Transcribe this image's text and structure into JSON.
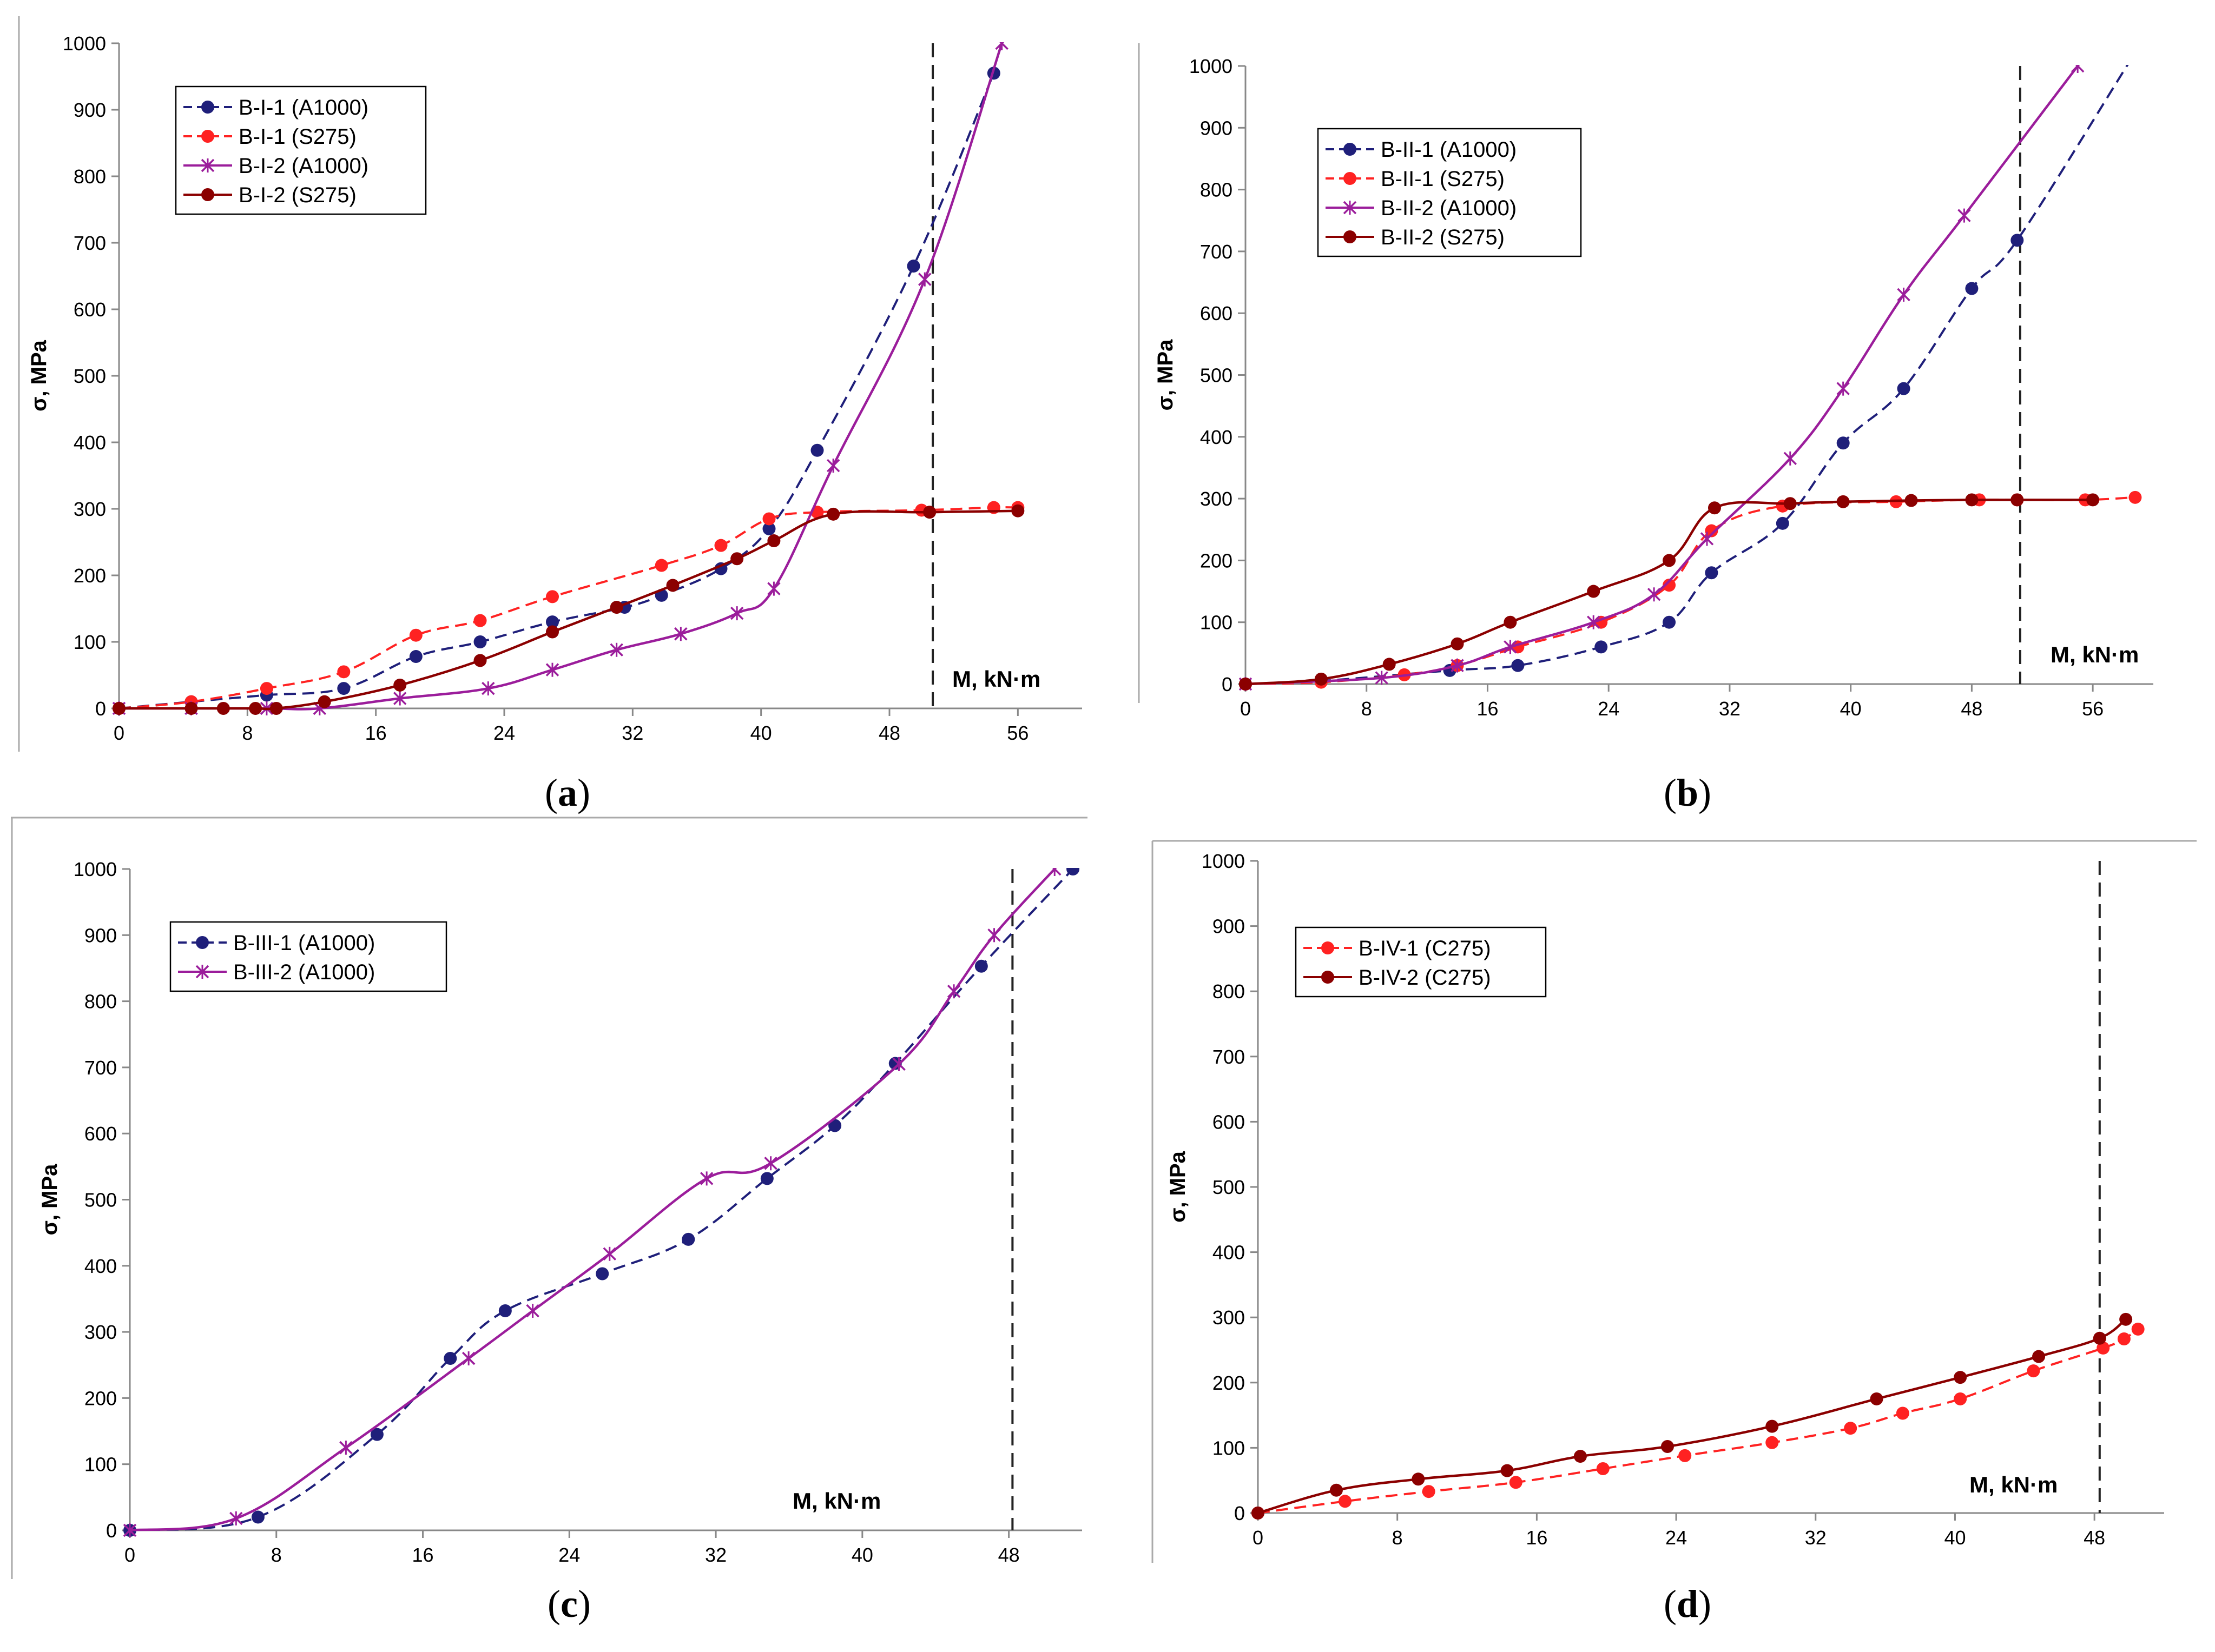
{
  "chart_data": [
    {
      "type": "line",
      "panel": "a",
      "caption": "(a)",
      "ylabel": "σ, MPa",
      "xlabel": "M,  kN·m",
      "xlim": [
        0,
        60
      ],
      "ylim": [
        0,
        1000
      ],
      "xticks": [
        0,
        8,
        16,
        24,
        32,
        40,
        48,
        56
      ],
      "yticks": [
        0,
        100,
        200,
        300,
        400,
        500,
        600,
        700,
        800,
        900,
        1000
      ],
      "vline_x": 50.7,
      "legend_position": "top-left",
      "series": [
        {
          "name": "B-I-1 (A1000)",
          "color": "#1f1f7a",
          "dashed": true,
          "marker": "dot",
          "x": [
            0,
            4.5,
            9.2,
            14,
            18.5,
            22.5,
            27,
            31.5,
            33.8,
            37.5,
            40.5,
            43.5,
            49.5,
            54.5
          ],
          "y": [
            0,
            10,
            20,
            30,
            78,
            100,
            130,
            152,
            170,
            210,
            270,
            388,
            665,
            955
          ]
        },
        {
          "name": "B-I-1 (S275)",
          "color": "#ff2222",
          "dashed": true,
          "marker": "dot",
          "x": [
            0,
            4.5,
            9.2,
            14,
            18.5,
            22.5,
            27,
            33.8,
            37.5,
            40.5,
            43.5,
            50,
            54.5,
            56
          ],
          "y": [
            0,
            10,
            30,
            55,
            110,
            132,
            168,
            215,
            245,
            285,
            295,
            298,
            302,
            302
          ]
        },
        {
          "name": "B-I-2 (A1000)",
          "color": "#9b1d9b",
          "dashed": false,
          "marker": "x",
          "x": [
            0,
            4.5,
            9.2,
            12.5,
            17.5,
            23,
            27,
            31,
            35,
            38.5,
            40.8,
            44.5,
            50.2,
            55
          ],
          "y": [
            0,
            0,
            0,
            0,
            15,
            30,
            58,
            88,
            112,
            143,
            180,
            365,
            645,
            1000
          ]
        },
        {
          "name": "B-I-2 (S275)",
          "color": "#8b0000",
          "dashed": false,
          "marker": "dot",
          "x": [
            0,
            4.5,
            6.5,
            8.5,
            9.8,
            12.8,
            17.5,
            22.5,
            27,
            31,
            34.5,
            38.5,
            40.8,
            44.5,
            50.5,
            56
          ],
          "y": [
            0,
            0,
            0,
            0,
            0,
            10,
            35,
            72,
            115,
            152,
            185,
            225,
            252,
            292,
            295,
            297
          ]
        }
      ]
    },
    {
      "type": "line",
      "panel": "b",
      "caption": "(b)",
      "ylabel": "σ, MPa",
      "xlabel": "M,  kN·m",
      "xlim": [
        0,
        60
      ],
      "ylim": [
        0,
        1000
      ],
      "xticks": [
        0,
        8,
        16,
        24,
        32,
        40,
        48,
        56
      ],
      "yticks": [
        0,
        100,
        200,
        300,
        400,
        500,
        600,
        700,
        800,
        900,
        1000
      ],
      "vline_x": 51.2,
      "legend_position": "top-left",
      "series": [
        {
          "name": "B-II-1 (A1000)",
          "color": "#1f1f7a",
          "dashed": true,
          "marker": "dot",
          "x": [
            0,
            5,
            13.5,
            18,
            23.5,
            28,
            30.8,
            35.5,
            39.5,
            43.5,
            48,
            51,
            58.5
          ],
          "y": [
            0,
            5,
            22,
            30,
            60,
            100,
            180,
            260,
            390,
            478,
            640,
            718,
            1010
          ]
        },
        {
          "name": "B-II-1 (S275)",
          "color": "#ff2222",
          "dashed": true,
          "marker": "dot",
          "x": [
            0,
            5,
            10.5,
            14,
            18,
            23.5,
            28,
            30.8,
            35.5,
            43,
            48.5,
            51,
            55.5,
            58.8
          ],
          "y": [
            0,
            3,
            15,
            30,
            60,
            100,
            160,
            248,
            288,
            295,
            298,
            298,
            298,
            302
          ]
        },
        {
          "name": "B-II-2 (A1000)",
          "color": "#9b1d9b",
          "dashed": false,
          "marker": "x",
          "x": [
            0,
            9,
            14,
            17.5,
            23,
            27,
            30.5,
            36,
            39.5,
            43.5,
            47.5,
            55
          ],
          "y": [
            0,
            10,
            30,
            60,
            100,
            145,
            235,
            365,
            478,
            630,
            758,
            1000
          ]
        },
        {
          "name": "B-II-2 (S275)",
          "color": "#8b0000",
          "dashed": false,
          "marker": "dot",
          "x": [
            0,
            5,
            9.5,
            14,
            17.5,
            23,
            28,
            31,
            36,
            39.5,
            44,
            48,
            51,
            56
          ],
          "y": [
            0,
            8,
            32,
            65,
            100,
            150,
            200,
            285,
            292,
            295,
            297,
            298,
            298,
            298
          ]
        }
      ]
    },
    {
      "type": "line",
      "panel": "c",
      "caption": "(c)",
      "ylabel": "σ, MPa",
      "xlabel": "M,  kN·m",
      "xlim": [
        0,
        52
      ],
      "ylim": [
        0,
        1000
      ],
      "xticks": [
        0,
        8,
        16,
        24,
        32,
        40,
        48
      ],
      "yticks": [
        0,
        100,
        200,
        300,
        400,
        500,
        600,
        700,
        800,
        900,
        1000
      ],
      "vline_x": 48.2,
      "legend_position": "top-left",
      "series": [
        {
          "name": "B-III-1 (A1000)",
          "color": "#1f1f7a",
          "dashed": true,
          "marker": "dot",
          "x": [
            0,
            7,
            13.5,
            17.5,
            20.5,
            25.8,
            30.5,
            34.8,
            38.5,
            41.8,
            46.5,
            51.5
          ],
          "y": [
            0,
            20,
            145,
            260,
            332,
            388,
            440,
            532,
            612,
            706,
            853,
            1000
          ]
        },
        {
          "name": "B-III-2 (A1000)",
          "color": "#9b1d9b",
          "dashed": false,
          "marker": "x",
          "x": [
            0,
            5.8,
            11.8,
            18.5,
            22,
            26.2,
            31.5,
            35,
            42,
            45,
            47.2,
            50.5
          ],
          "y": [
            0,
            18,
            125,
            260,
            332,
            418,
            532,
            555,
            705,
            815,
            900,
            1000
          ]
        }
      ]
    },
    {
      "type": "line",
      "panel": "d",
      "caption": "(d)",
      "ylabel": "σ, MPa",
      "xlabel": "M,  kN·m",
      "xlim": [
        0,
        52
      ],
      "ylim": [
        0,
        1000
      ],
      "xticks": [
        0,
        8,
        16,
        24,
        32,
        40,
        48
      ],
      "yticks": [
        0,
        100,
        200,
        300,
        400,
        500,
        600,
        700,
        800,
        900,
        1000
      ],
      "vline_x": 48.3,
      "legend_position": "top-left",
      "series": [
        {
          "name": "B-IV-1 (C275)",
          "color": "#ff2222",
          "dashed": true,
          "marker": "dot",
          "x": [
            0,
            5,
            9.8,
            14.8,
            19.8,
            24.5,
            29.5,
            34,
            37,
            40.3,
            44.5,
            48.5,
            49.7,
            50.5
          ],
          "y": [
            0,
            18,
            33,
            47,
            68,
            88,
            108,
            130,
            153,
            175,
            218,
            253,
            267,
            282
          ]
        },
        {
          "name": "B-IV-2 (C275)",
          "color": "#8b0000",
          "dashed": false,
          "marker": "dot",
          "x": [
            0,
            4.5,
            9.2,
            14.3,
            18.5,
            23.5,
            29.5,
            35.5,
            40.3,
            44.8,
            48.3,
            49.8
          ],
          "y": [
            0,
            35,
            52,
            65,
            87,
            102,
            133,
            175,
            208,
            240,
            268,
            297
          ]
        }
      ]
    }
  ]
}
